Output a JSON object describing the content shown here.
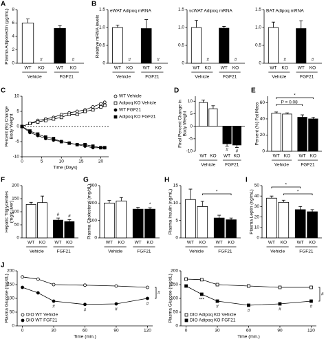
{
  "chart_data": [
    {
      "type": "bar",
      "label": "A",
      "ylabel": [
        "Plasma Adiponectin (µg/mL)"
      ],
      "categories": [
        "WT",
        "KO",
        "WT",
        "KO"
      ],
      "groups": [
        "Vehicle",
        "FGF21"
      ],
      "colors": [
        "#ffffff",
        "#ffffff",
        "#000000",
        "#000000"
      ],
      "values": [
        6.0,
        0,
        5.2,
        0
      ],
      "errors": [
        0.6,
        null,
        0.4,
        null
      ],
      "ylim": [
        0,
        8
      ],
      "yticks": [
        0,
        2,
        4,
        6,
        8
      ],
      "annotations": [
        {
          "text": "#",
          "at": 1
        },
        {
          "text": "#",
          "at": 3
        }
      ]
    },
    {
      "type": "bar",
      "label": "B",
      "title": "eWAT Adipoq mRNA",
      "ylabel": [
        "Relative mRNA levels"
      ],
      "categories": [
        "WT",
        "KO",
        "WT",
        "KO"
      ],
      "groups": [
        "Vehicle",
        "FGF21"
      ],
      "colors": [
        "#ffffff",
        "#ffffff",
        "#000000",
        "#000000"
      ],
      "values": [
        1.0,
        0,
        0.97,
        0
      ],
      "errors": [
        0.07,
        null,
        0.25,
        null
      ],
      "ylim": [
        0,
        1.5
      ],
      "yticks": [
        0,
        0.5,
        {
          "value": 1,
          "label": "1.0"
        },
        1.5
      ],
      "annotations": [
        {
          "text": "#",
          "at": 1
        },
        {
          "text": "#",
          "at": 3
        }
      ]
    },
    {
      "type": "bar",
      "title": "scWAT Adipoq mRNA",
      "categories": [
        "WT",
        "KO",
        "WT",
        "KO"
      ],
      "groups": [
        "Vehicle",
        "FGF21"
      ],
      "colors": [
        "#ffffff",
        "#ffffff",
        "#000000",
        "#000000"
      ],
      "values": [
        1.0,
        0,
        0.98,
        0
      ],
      "errors": [
        0.2,
        null,
        0.05,
        null
      ],
      "ylim": [
        0,
        1.5
      ],
      "yticks": [
        0,
        0.5,
        {
          "value": 1,
          "label": "1.0"
        },
        1.5
      ],
      "annotations": [
        {
          "text": "#",
          "at": 1
        },
        {
          "text": "#",
          "at": 3
        }
      ]
    },
    {
      "type": "bar",
      "title": "BAT Adipoq mRNA",
      "categories": [
        "WT",
        "KO",
        "WT",
        "KO"
      ],
      "groups": [
        "Vehicle",
        "FGF21"
      ],
      "colors": [
        "#ffffff",
        "#ffffff",
        "#000000",
        "#000000"
      ],
      "values": [
        1.0,
        0,
        0.97,
        0
      ],
      "errors": [
        0.15,
        null,
        0.22,
        null
      ],
      "ylim": [
        0,
        1.5
      ],
      "yticks": [
        0,
        0.5,
        {
          "value": 1,
          "label": "1.0"
        },
        1.5
      ],
      "annotations": [
        {
          "text": "#",
          "at": 1
        },
        {
          "text": "#",
          "at": 3
        }
      ]
    },
    {
      "type": "line",
      "label": "C",
      "ylabel": [
        "Percent (%) Change",
        "Body Weight"
      ],
      "xlabel": "Time (Days)",
      "legend": "right",
      "x": [
        0,
        2,
        4,
        6,
        8,
        10,
        12,
        14,
        16,
        18,
        20,
        21
      ],
      "series": [
        {
          "name": "WT Vehicle",
          "color": "#000000",
          "fill": "#ffffff",
          "marker": "circle",
          "values": [
            0,
            1,
            2,
            2.5,
            3,
            4,
            4.5,
            5,
            5.5,
            6.5,
            7.5,
            8
          ]
        },
        {
          "name": "Adipoq KO Vehicle",
          "color": "#000000",
          "fill": "#ffffff",
          "marker": "square",
          "values": [
            0,
            1,
            1.5,
            2,
            2.5,
            3,
            4,
            4,
            5,
            5.5,
            6.5,
            7
          ]
        },
        {
          "name": "WT FGF21",
          "color": "#000000",
          "fill": "#000000",
          "marker": "circle",
          "values": [
            0,
            -2,
            -3,
            -4,
            -4.5,
            -5,
            -5.5,
            -6,
            -6.5,
            -7,
            -7,
            -7
          ]
        },
        {
          "name": "Adipoq KO FGF21",
          "color": "#000000",
          "fill": "#000000",
          "marker": "square",
          "values": [
            0,
            -1.5,
            -2.5,
            -3.5,
            -4,
            -5,
            -5.5,
            -6,
            -6,
            -6.5,
            -7,
            -7
          ]
        }
      ],
      "xlim": [
        0,
        22
      ],
      "xticks": [
        0,
        5,
        10,
        15,
        20
      ],
      "ylim": [
        -10,
        10
      ],
      "yticks": [
        -10,
        -5,
        0,
        5,
        10
      ]
    },
    {
      "type": "bar",
      "label": "D",
      "ylabel": [
        "Final Percent Change in",
        "Body Weight"
      ],
      "categories": [
        "WT",
        "KO",
        "WT",
        "KO"
      ],
      "groups": [
        "Vehicle",
        "FGF21"
      ],
      "colors": [
        "#ffffff",
        "#ffffff",
        "#000000",
        "#000000"
      ],
      "values": [
        9.5,
        7,
        -7,
        -7.5
      ],
      "errors": [
        1,
        1.2,
        1,
        1
      ],
      "ylim": [
        -10,
        12
      ],
      "yticks": [
        -10,
        -5,
        0,
        5,
        10
      ],
      "annotations": [
        {
          "text": "#",
          "at": 2
        },
        {
          "text": "#",
          "at": 3
        }
      ]
    },
    {
      "type": "bar",
      "label": "E",
      "ylabel": [
        "Percent (%) Fat Mass"
      ],
      "categories": [
        "WT",
        "KO",
        "WT",
        "KO"
      ],
      "groups": [
        "Vehicle",
        "FGF21"
      ],
      "colors": [
        "#ffffff",
        "#ffffff",
        "#000000",
        "#000000"
      ],
      "values": [
        47,
        46,
        42,
        40
      ],
      "errors": [
        1.5,
        1.5,
        3,
        2
      ],
      "ylim": [
        0,
        68
      ],
      "yticks": [
        0,
        20,
        40,
        60
      ],
      "annotations": [
        {
          "text": "P = 0.08",
          "from": 0,
          "to": 2,
          "level": 1
        },
        {
          "text": "*",
          "from": 0,
          "to": 3,
          "level": 0
        }
      ]
    },
    {
      "type": "bar",
      "label": "F",
      "ylabel": [
        "Hepatic Triglycerides",
        "(mg/g liver)"
      ],
      "categories": [
        "WT",
        "KO",
        "WT",
        "KO"
      ],
      "groups": [
        "Vehicle",
        "FGF21"
      ],
      "colors": [
        "#ffffff",
        "#ffffff",
        "#000000",
        "#000000"
      ],
      "values": [
        128,
        135,
        68,
        62
      ],
      "errors": [
        8,
        25,
        8,
        8
      ],
      "ylim": [
        0,
        200
      ],
      "yticks": [
        0,
        50,
        100,
        150,
        200
      ],
      "annotations": [
        {
          "text": "#",
          "at": 2
        },
        {
          "text": "#",
          "at": 3
        }
      ]
    },
    {
      "type": "bar",
      "label": "G",
      "ylabel": [
        "Plasma Cholesterol (mg/dL)"
      ],
      "categories": [
        "WT",
        "KO",
        "WT",
        "KO"
      ],
      "groups": [
        "Vehicle",
        "FGF21"
      ],
      "colors": [
        "#ffffff",
        "#ffffff",
        "#000000",
        "#000000"
      ],
      "values": [
        200,
        212,
        165,
        165
      ],
      "errors": [
        15,
        20,
        10,
        8
      ],
      "ylim": [
        0,
        300
      ],
      "yticks": [
        0,
        100,
        200,
        300
      ],
      "annotations": [
        {
          "text": "*",
          "at": 3
        }
      ]
    },
    {
      "type": "bar",
      "label": "H",
      "ylabel": [
        "Plasma Insulin (ng/mL)"
      ],
      "categories": [
        "WT",
        "KO",
        "WT",
        "KO"
      ],
      "groups": [
        "Vehicle",
        "FGF21"
      ],
      "colors": [
        "#ffffff",
        "#ffffff",
        "#000000",
        "#000000"
      ],
      "values": [
        11,
        9,
        5.7,
        5.2
      ],
      "errors": [
        3,
        1.5,
        0.8,
        0.5
      ],
      "ylim": [
        0,
        15
      ],
      "yticks": [
        0,
        5,
        10,
        15
      ],
      "annotations": [
        {
          "text": "*",
          "from": 1,
          "to": 3,
          "level": 1
        }
      ]
    },
    {
      "type": "bar",
      "label": "I",
      "ylabel": [
        "Plasma Leptin (ng/mL)"
      ],
      "categories": [
        "WT",
        "KO",
        "WT",
        "KO"
      ],
      "groups": [
        "Vehicle",
        "FGF21"
      ],
      "colors": [
        "#ffffff",
        "#ffffff",
        "#000000",
        "#000000"
      ],
      "values": [
        38,
        34,
        27,
        25
      ],
      "errors": [
        2,
        2,
        3,
        2
      ],
      "ylim": [
        0,
        50
      ],
      "yticks": [
        0,
        10,
        20,
        30,
        40,
        50
      ],
      "annotations": [
        {
          "text": "*",
          "from": 0,
          "to": 2,
          "level": 0
        },
        {
          "text": "*",
          "from": 1,
          "to": 3,
          "level": 1
        }
      ]
    },
    {
      "type": "line",
      "label": "J",
      "ylabel": [
        "Plasma Glucose (mg/dL)"
      ],
      "xlabel": "Time (min.)",
      "legend": "lower",
      "x": [
        0,
        15,
        30,
        60,
        90,
        120
      ],
      "series": [
        {
          "name": "DIO WT Vehicle",
          "color": "#000000",
          "fill": "#ffffff",
          "marker": "circle",
          "values": [
            178,
            170,
            150,
            148,
            145,
            140
          ]
        },
        {
          "name": "DIO WT FGF21",
          "color": "#000000",
          "fill": "#000000",
          "marker": "circle",
          "values": [
            140,
            120,
            90,
            78,
            80,
            100
          ]
        }
      ],
      "xlim": [
        -5,
        125
      ],
      "xticks": [
        0,
        30,
        60,
        90,
        120
      ],
      "ylim": [
        0,
        200
      ],
      "yticks": [
        0,
        50,
        100,
        150,
        200
      ],
      "annotations": [
        {
          "text": "#",
          "series": 1,
          "at": 2
        },
        {
          "text": "#",
          "series": 1,
          "at": 3
        },
        {
          "text": "#",
          "series": 1,
          "at": 4
        },
        {
          "text": "#",
          "series": 1,
          "at": 5
        },
        {
          "text": "#",
          "side": "right"
        }
      ]
    },
    {
      "type": "line",
      "ylabel": [
        "Plasma Glucose (mg/dL)"
      ],
      "xlabel": "Time (min.)",
      "legend": "lower",
      "x": [
        0,
        15,
        30,
        60,
        90,
        120
      ],
      "series": [
        {
          "name": "DIO Adipoq KO Vehicle",
          "color": "#000000",
          "fill": "#ffffff",
          "marker": "square",
          "values": [
            170,
            168,
            150,
            145,
            140,
            140
          ]
        },
        {
          "name": "DIO Adipoq KO FGF21",
          "color": "#000000",
          "fill": "#000000",
          "marker": "square",
          "values": [
            145,
            115,
            90,
            75,
            80,
            90
          ]
        }
      ],
      "xlim": [
        -5,
        125
      ],
      "xticks": [
        0,
        30,
        60,
        90,
        120
      ],
      "ylim": [
        0,
        200
      ],
      "yticks": [
        0,
        50,
        100,
        150,
        200
      ],
      "annotations": [
        {
          "text": "***",
          "series": 1,
          "at": 1
        },
        {
          "text": "#",
          "series": 1,
          "at": 2
        },
        {
          "text": "#",
          "series": 1,
          "at": 3
        },
        {
          "text": "#",
          "series": 1,
          "at": 4
        },
        {
          "text": "#",
          "series": 1,
          "at": 5
        },
        {
          "text": "#",
          "side": "right"
        }
      ]
    }
  ]
}
